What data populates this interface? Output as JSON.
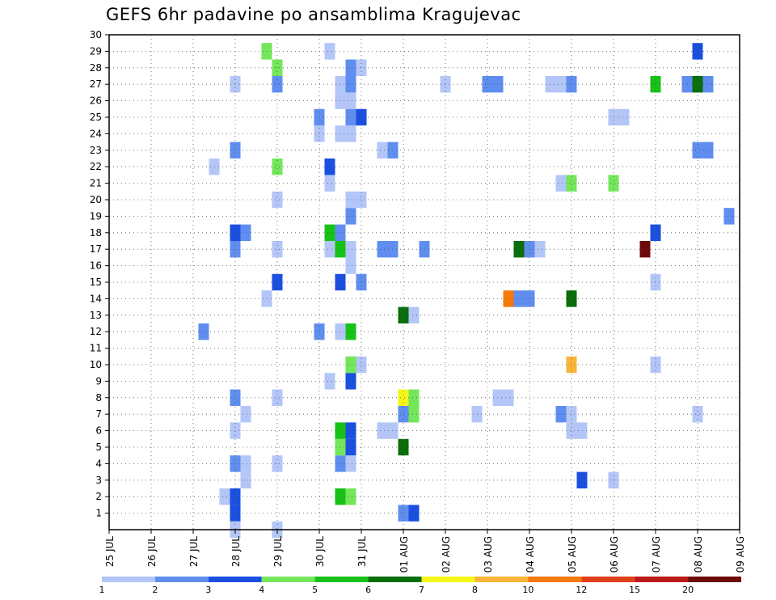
{
  "chart_data": {
    "type": "heatmap",
    "title": "GEFS 6hr padavine po ansamblima Kragujevac",
    "xlabel": "",
    "ylabel": "",
    "x_dates": [
      "25 JUL",
      "26 JUL",
      "27 JUL",
      "28 JUL",
      "29 JUL",
      "30 JUL",
      "31 JUL",
      "01 AUG",
      "02 AUG",
      "03 AUG",
      "04 AUG",
      "05 AUG",
      "06 AUG",
      "07 AUG",
      "08 AUG",
      "09 AUG"
    ],
    "y_members": [
      1,
      2,
      3,
      4,
      5,
      6,
      7,
      8,
      9,
      10,
      11,
      12,
      13,
      14,
      15,
      16,
      17,
      18,
      19,
      20,
      21,
      22,
      23,
      24,
      25,
      26,
      27,
      28,
      29,
      30
    ],
    "step_hours": 6,
    "grid": true,
    "legend_placement": "bottom",
    "levels": [
      1,
      2,
      3,
      4,
      5,
      6,
      7,
      8,
      10,
      12,
      15,
      20
    ],
    "colors": [
      "#b3c6f7",
      "#5f8ef0",
      "#1a4fe0",
      "#73e65a",
      "#17c217",
      "#0a6e0a",
      "#f5f518",
      "#fbb43a",
      "#f57a0a",
      "#e0401a",
      "#bb1a1a",
      "#6e0a0a"
    ],
    "cells": [
      {
        "day": 3.0,
        "member": 1,
        "level": 2
      },
      {
        "day": 3.0,
        "member": 0,
        "level": 0
      },
      {
        "day": 4.0,
        "member": 0,
        "level": 0
      },
      {
        "day": 7.0,
        "member": 1,
        "level": 1
      },
      {
        "day": 7.25,
        "member": 1,
        "level": 2
      },
      {
        "day": 2.75,
        "member": 2,
        "level": 0
      },
      {
        "day": 3.0,
        "member": 2,
        "level": 2
      },
      {
        "day": 5.5,
        "member": 2,
        "level": 4
      },
      {
        "day": 5.75,
        "member": 2,
        "level": 3
      },
      {
        "day": 3.25,
        "member": 3,
        "level": 0
      },
      {
        "day": 11.25,
        "member": 3,
        "level": 2
      },
      {
        "day": 12.0,
        "member": 3,
        "level": 0
      },
      {
        "day": 3.0,
        "member": 4,
        "level": 1
      },
      {
        "day": 3.25,
        "member": 4,
        "level": 0
      },
      {
        "day": 4.0,
        "member": 4,
        "level": 0
      },
      {
        "day": 5.5,
        "member": 4,
        "level": 1
      },
      {
        "day": 5.75,
        "member": 4,
        "level": 0
      },
      {
        "day": 5.5,
        "member": 5,
        "level": 3
      },
      {
        "day": 5.75,
        "member": 5,
        "level": 2
      },
      {
        "day": 7.0,
        "member": 5,
        "level": 5
      },
      {
        "day": 3.0,
        "member": 6,
        "level": 0
      },
      {
        "day": 5.5,
        "member": 6,
        "level": 4
      },
      {
        "day": 5.75,
        "member": 6,
        "level": 2
      },
      {
        "day": 6.5,
        "member": 6,
        "level": 0
      },
      {
        "day": 6.75,
        "member": 6,
        "level": 0
      },
      {
        "day": 11.0,
        "member": 6,
        "level": 0
      },
      {
        "day": 11.25,
        "member": 6,
        "level": 0
      },
      {
        "day": 3.25,
        "member": 7,
        "level": 0
      },
      {
        "day": 7.0,
        "member": 7,
        "level": 1
      },
      {
        "day": 7.25,
        "member": 7,
        "level": 3
      },
      {
        "day": 8.75,
        "member": 7,
        "level": 0
      },
      {
        "day": 10.75,
        "member": 7,
        "level": 1
      },
      {
        "day": 11.0,
        "member": 7,
        "level": 0
      },
      {
        "day": 14.0,
        "member": 7,
        "level": 0
      },
      {
        "day": 3.0,
        "member": 8,
        "level": 1
      },
      {
        "day": 4.0,
        "member": 8,
        "level": 0
      },
      {
        "day": 7.0,
        "member": 8,
        "level": 6
      },
      {
        "day": 7.25,
        "member": 8,
        "level": 3
      },
      {
        "day": 9.25,
        "member": 8,
        "level": 0
      },
      {
        "day": 9.5,
        "member": 8,
        "level": 0
      },
      {
        "day": 5.25,
        "member": 9,
        "level": 0
      },
      {
        "day": 5.75,
        "member": 9,
        "level": 2
      },
      {
        "day": 5.75,
        "member": 10,
        "level": 3
      },
      {
        "day": 6.0,
        "member": 10,
        "level": 0
      },
      {
        "day": 11.0,
        "member": 10,
        "level": 7
      },
      {
        "day": 13.0,
        "member": 10,
        "level": 0
      },
      {
        "day": 2.25,
        "member": 12,
        "level": 1
      },
      {
        "day": 5.0,
        "member": 12,
        "level": 1
      },
      {
        "day": 5.5,
        "member": 12,
        "level": 0
      },
      {
        "day": 5.75,
        "member": 12,
        "level": 4
      },
      {
        "day": 7.0,
        "member": 13,
        "level": 5
      },
      {
        "day": 7.25,
        "member": 13,
        "level": 0
      },
      {
        "day": 3.75,
        "member": 14,
        "level": 0
      },
      {
        "day": 9.5,
        "member": 14,
        "level": 8
      },
      {
        "day": 9.75,
        "member": 14,
        "level": 1
      },
      {
        "day": 10.0,
        "member": 14,
        "level": 1
      },
      {
        "day": 11.0,
        "member": 14,
        "level": 5
      },
      {
        "day": 4.0,
        "member": 15,
        "level": 2
      },
      {
        "day": 5.5,
        "member": 15,
        "level": 2
      },
      {
        "day": 6.0,
        "member": 15,
        "level": 1
      },
      {
        "day": 13.0,
        "member": 15,
        "level": 0
      },
      {
        "day": 5.75,
        "member": 16,
        "level": 0
      },
      {
        "day": 3.0,
        "member": 17,
        "level": 1
      },
      {
        "day": 4.0,
        "member": 17,
        "level": 0
      },
      {
        "day": 5.25,
        "member": 17,
        "level": 0
      },
      {
        "day": 5.5,
        "member": 17,
        "level": 4
      },
      {
        "day": 5.75,
        "member": 17,
        "level": 0
      },
      {
        "day": 6.5,
        "member": 17,
        "level": 1
      },
      {
        "day": 6.75,
        "member": 17,
        "level": 1
      },
      {
        "day": 7.5,
        "member": 17,
        "level": 1
      },
      {
        "day": 9.75,
        "member": 17,
        "level": 5
      },
      {
        "day": 10.0,
        "member": 17,
        "level": 1
      },
      {
        "day": 10.25,
        "member": 17,
        "level": 0
      },
      {
        "day": 12.75,
        "member": 17,
        "level": 11
      },
      {
        "day": 3.0,
        "member": 18,
        "level": 2
      },
      {
        "day": 3.25,
        "member": 18,
        "level": 1
      },
      {
        "day": 5.25,
        "member": 18,
        "level": 4
      },
      {
        "day": 5.5,
        "member": 18,
        "level": 1
      },
      {
        "day": 13.0,
        "member": 18,
        "level": 2
      },
      {
        "day": 5.75,
        "member": 19,
        "level": 1
      },
      {
        "day": 14.75,
        "member": 19,
        "level": 1
      },
      {
        "day": 4.0,
        "member": 20,
        "level": 0
      },
      {
        "day": 5.75,
        "member": 20,
        "level": 0
      },
      {
        "day": 6.0,
        "member": 20,
        "level": 0
      },
      {
        "day": 5.25,
        "member": 21,
        "level": 0
      },
      {
        "day": 10.75,
        "member": 21,
        "level": 0
      },
      {
        "day": 11.0,
        "member": 21,
        "level": 3
      },
      {
        "day": 12.0,
        "member": 21,
        "level": 3
      },
      {
        "day": 2.5,
        "member": 22,
        "level": 0
      },
      {
        "day": 4.0,
        "member": 22,
        "level": 3
      },
      {
        "day": 5.25,
        "member": 22,
        "level": 2
      },
      {
        "day": 3.0,
        "member": 23,
        "level": 1
      },
      {
        "day": 6.5,
        "member": 23,
        "level": 0
      },
      {
        "day": 6.75,
        "member": 23,
        "level": 1
      },
      {
        "day": 14.0,
        "member": 23,
        "level": 1
      },
      {
        "day": 14.25,
        "member": 23,
        "level": 1
      },
      {
        "day": 5.0,
        "member": 24,
        "level": 0
      },
      {
        "day": 5.5,
        "member": 24,
        "level": 0
      },
      {
        "day": 5.75,
        "member": 24,
        "level": 0
      },
      {
        "day": 5.0,
        "member": 25,
        "level": 1
      },
      {
        "day": 5.75,
        "member": 25,
        "level": 1
      },
      {
        "day": 6.0,
        "member": 25,
        "level": 2
      },
      {
        "day": 12.0,
        "member": 25,
        "level": 0
      },
      {
        "day": 12.25,
        "member": 25,
        "level": 0
      },
      {
        "day": 5.5,
        "member": 26,
        "level": 0
      },
      {
        "day": 5.75,
        "member": 26,
        "level": 0
      },
      {
        "day": 3.0,
        "member": 27,
        "level": 0
      },
      {
        "day": 4.0,
        "member": 27,
        "level": 1
      },
      {
        "day": 5.5,
        "member": 27,
        "level": 0
      },
      {
        "day": 5.75,
        "member": 27,
        "level": 1
      },
      {
        "day": 8.0,
        "member": 27,
        "level": 0
      },
      {
        "day": 9.0,
        "member": 27,
        "level": 1
      },
      {
        "day": 9.25,
        "member": 27,
        "level": 1
      },
      {
        "day": 10.5,
        "member": 27,
        "level": 0
      },
      {
        "day": 10.75,
        "member": 27,
        "level": 0
      },
      {
        "day": 11.0,
        "member": 27,
        "level": 1
      },
      {
        "day": 13.0,
        "member": 27,
        "level": 4
      },
      {
        "day": 13.75,
        "member": 27,
        "level": 1
      },
      {
        "day": 14.0,
        "member": 27,
        "level": 5
      },
      {
        "day": 14.25,
        "member": 27,
        "level": 1
      },
      {
        "day": 4.0,
        "member": 28,
        "level": 3
      },
      {
        "day": 5.75,
        "member": 28,
        "level": 1
      },
      {
        "day": 6.0,
        "member": 28,
        "level": 0
      },
      {
        "day": 3.75,
        "member": 29,
        "level": 3
      },
      {
        "day": 5.25,
        "member": 29,
        "level": 0
      },
      {
        "day": 14.0,
        "member": 29,
        "level": 2
      }
    ]
  }
}
